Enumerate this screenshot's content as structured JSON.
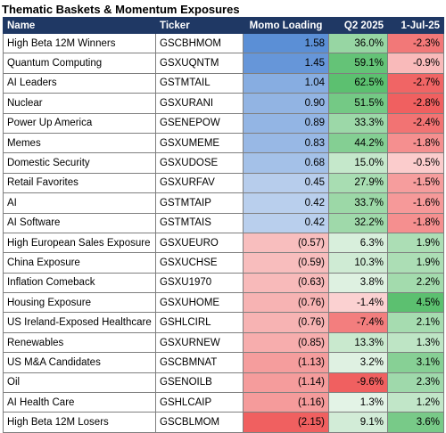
{
  "title": "Thematic Baskets & Momentum Exposures",
  "headers": {
    "name": "Name",
    "ticker": "Ticker",
    "momo": "Momo Loading",
    "q2": "Q2 2025",
    "jul": "1-Jul-25"
  },
  "colors": {
    "header_bg": "#1f3864",
    "blue_strong": "#5b8fd6",
    "red_strong": "#f06060",
    "green_strong": "#5cc070",
    "green_light": "#e6f4e8",
    "red_light": "#fde4e4"
  },
  "rows": [
    {
      "name": "High Beta 12M Winners",
      "ticker": "GSCBHMOM",
      "momo": "1.58",
      "momo_value": 1.58,
      "q2": "36.0%",
      "q2_value": 36.0,
      "jul": "-2.3%",
      "jul_value": -2.3
    },
    {
      "name": "Quantum Computing",
      "ticker": "GSXUQNTM",
      "momo": "1.45",
      "momo_value": 1.45,
      "q2": "59.1%",
      "q2_value": 59.1,
      "jul": "-0.9%",
      "jul_value": -0.9
    },
    {
      "name": "AI Leaders",
      "ticker": "GSTMTAIL",
      "momo": "1.04",
      "momo_value": 1.04,
      "q2": "62.5%",
      "q2_value": 62.5,
      "jul": "-2.7%",
      "jul_value": -2.7
    },
    {
      "name": "Nuclear",
      "ticker": "GSXURANI",
      "momo": "0.90",
      "momo_value": 0.9,
      "q2": "51.5%",
      "q2_value": 51.5,
      "jul": "-2.8%",
      "jul_value": -2.8
    },
    {
      "name": "Power Up America",
      "ticker": "GSENEPOW",
      "momo": "0.89",
      "momo_value": 0.89,
      "q2": "33.3%",
      "q2_value": 33.3,
      "jul": "-2.4%",
      "jul_value": -2.4
    },
    {
      "name": "Memes",
      "ticker": "GSXUMEME",
      "momo": "0.83",
      "momo_value": 0.83,
      "q2": "44.2%",
      "q2_value": 44.2,
      "jul": "-1.8%",
      "jul_value": -1.8
    },
    {
      "name": "Domestic Security",
      "ticker": "GSXUDOSE",
      "momo": "0.68",
      "momo_value": 0.68,
      "q2": "15.0%",
      "q2_value": 15.0,
      "jul": "-0.5%",
      "jul_value": -0.5
    },
    {
      "name": "Retail Favorites",
      "ticker": "GSXURFAV",
      "momo": "0.45",
      "momo_value": 0.45,
      "q2": "27.9%",
      "q2_value": 27.9,
      "jul": "-1.5%",
      "jul_value": -1.5
    },
    {
      "name": "AI",
      "ticker": "GSTMTAIP",
      "momo": "0.42",
      "momo_value": 0.42,
      "q2": "33.7%",
      "q2_value": 33.7,
      "jul": "-1.6%",
      "jul_value": -1.6
    },
    {
      "name": "AI Software",
      "ticker": "GSTMTAIS",
      "momo": "0.42",
      "momo_value": 0.42,
      "q2": "32.2%",
      "q2_value": 32.2,
      "jul": "-1.8%",
      "jul_value": -1.8
    },
    {
      "name": "High European Sales Exposure",
      "ticker": "GSXUEURO",
      "momo": "(0.57)",
      "momo_value": -0.57,
      "q2": "6.3%",
      "q2_value": 6.3,
      "jul": "1.9%",
      "jul_value": 1.9
    },
    {
      "name": "China Exposure",
      "ticker": "GSXUCHSE",
      "momo": "(0.59)",
      "momo_value": -0.59,
      "q2": "10.3%",
      "q2_value": 10.3,
      "jul": "1.9%",
      "jul_value": 1.9
    },
    {
      "name": "Inflation Comeback",
      "ticker": "GSXU1970",
      "momo": "(0.63)",
      "momo_value": -0.63,
      "q2": "3.8%",
      "q2_value": 3.8,
      "jul": "2.2%",
      "jul_value": 2.2
    },
    {
      "name": "Housing Exposure",
      "ticker": "GSXUHOME",
      "momo": "(0.76)",
      "momo_value": -0.76,
      "q2": "-1.4%",
      "q2_value": -1.4,
      "jul": "4.5%",
      "jul_value": 4.5
    },
    {
      "name": "US Ireland-Exposed Healthcare",
      "ticker": "GSHLCIRL",
      "momo": "(0.76)",
      "momo_value": -0.76,
      "q2": "-7.4%",
      "q2_value": -7.4,
      "jul": "2.1%",
      "jul_value": 2.1
    },
    {
      "name": "Renewables",
      "ticker": "GSXURNEW",
      "momo": "(0.85)",
      "momo_value": -0.85,
      "q2": "13.3%",
      "q2_value": 13.3,
      "jul": "1.3%",
      "jul_value": 1.3
    },
    {
      "name": "US M&A Candidates",
      "ticker": "GSCBMNAT",
      "momo": "(1.13)",
      "momo_value": -1.13,
      "q2": "3.2%",
      "q2_value": 3.2,
      "jul": "3.1%",
      "jul_value": 3.1
    },
    {
      "name": "Oil",
      "ticker": "GSENOILB",
      "momo": "(1.14)",
      "momo_value": -1.14,
      "q2": "-9.6%",
      "q2_value": -9.6,
      "jul": "2.3%",
      "jul_value": 2.3
    },
    {
      "name": "AI Health Care",
      "ticker": "GSHLCAIP",
      "momo": "(1.16)",
      "momo_value": -1.16,
      "q2": "1.3%",
      "q2_value": 1.3,
      "jul": "1.2%",
      "jul_value": 1.2
    },
    {
      "name": "High Beta 12M Losers",
      "ticker": "GSCBLMOM",
      "momo": "(2.15)",
      "momo_value": -2.15,
      "q2": "9.1%",
      "q2_value": 9.1,
      "jul": "3.6%",
      "jul_value": 3.6
    }
  ]
}
